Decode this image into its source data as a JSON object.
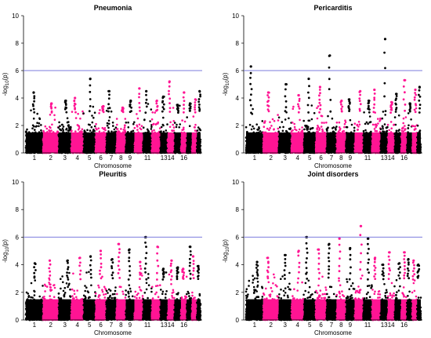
{
  "chart_data": [
    {
      "type": "scatter",
      "title": "Pneumonia",
      "xlabel": "Chromosome",
      "ylabel": "-log10(p)",
      "ylim": [
        0,
        10
      ],
      "yticks": [
        0,
        2,
        4,
        6,
        8,
        10
      ],
      "threshold": 6,
      "chromosomes": [
        "1",
        "2",
        "3",
        "4",
        "5",
        "6",
        "7",
        "8",
        "9",
        "10",
        "11",
        "12",
        "13",
        "14",
        "15",
        "16",
        "17",
        "18",
        "19"
      ],
      "xtick_labels": [
        "1",
        "2",
        "3",
        "4",
        "5",
        "6",
        "7",
        "8",
        "9",
        "11",
        "13",
        "14",
        "16"
      ],
      "series_colors": [
        "#000000",
        "#ff1493"
      ],
      "peaks": [
        4.4,
        3.6,
        3.8,
        4.0,
        5.4,
        3.4,
        4.5,
        3.3,
        3.8,
        4.7,
        4.5,
        3.8,
        4.1,
        5.2,
        3.5,
        4.4,
        3.6,
        3.9,
        4.5
      ]
    },
    {
      "type": "scatter",
      "title": "Pericarditis",
      "xlabel": "Chromosome",
      "ylabel": "-log10(p)",
      "ylim": [
        0,
        10
      ],
      "yticks": [
        0,
        2,
        4,
        6,
        8,
        10
      ],
      "threshold": 6,
      "chromosomes": [
        "1",
        "2",
        "3",
        "4",
        "5",
        "6",
        "7",
        "8",
        "9",
        "10",
        "11",
        "12",
        "13",
        "14",
        "15",
        "16",
        "17",
        "18",
        "19"
      ],
      "xtick_labels": [
        "1",
        "2",
        "3",
        "4",
        "5",
        "6",
        "7",
        "8",
        "9",
        "11",
        "13",
        "14",
        "16"
      ],
      "series_colors": [
        "#000000",
        "#ff1493"
      ],
      "peaks": [
        6.3,
        4.4,
        5.0,
        4.2,
        5.4,
        4.8,
        7.1,
        3.8,
        3.9,
        4.5,
        3.8,
        4.6,
        8.3,
        3.7,
        4.3,
        5.3,
        3.6,
        4.6,
        4.8
      ]
    },
    {
      "type": "scatter",
      "title": "Pleuritis",
      "xlabel": "Chromosome",
      "ylabel": "-log10(p)",
      "ylim": [
        0,
        10
      ],
      "yticks": [
        0,
        2,
        4,
        6,
        8,
        10
      ],
      "threshold": 6,
      "chromosomes": [
        "1",
        "2",
        "3",
        "4",
        "5",
        "6",
        "7",
        "8",
        "9",
        "10",
        "11",
        "12",
        "13",
        "14",
        "15",
        "16",
        "17",
        "18",
        "19"
      ],
      "xtick_labels": [
        "1",
        "2",
        "3",
        "4",
        "5",
        "6",
        "7",
        "8",
        "9",
        "11",
        "13",
        "14",
        "16"
      ],
      "series_colors": [
        "#000000",
        "#ff1493"
      ],
      "peaks": [
        4.1,
        4.3,
        4.3,
        4.5,
        4.6,
        5.0,
        4.4,
        5.5,
        5.1,
        4.2,
        6.0,
        5.3,
        3.7,
        4.3,
        3.8,
        3.7,
        5.3,
        4.6,
        3.9
      ]
    },
    {
      "type": "scatter",
      "title": "Joint disorders",
      "xlabel": "Chromosome",
      "ylabel": "-log10(p)",
      "ylim": [
        0,
        10
      ],
      "yticks": [
        0,
        2,
        4,
        6,
        8,
        10
      ],
      "threshold": 6,
      "chromosomes": [
        "1",
        "2",
        "3",
        "4",
        "5",
        "6",
        "7",
        "8",
        "9",
        "10",
        "11",
        "12",
        "13",
        "14",
        "15",
        "16",
        "17",
        "18",
        "19"
      ],
      "xtick_labels": [
        "1",
        "2",
        "3",
        "4",
        "5",
        "6",
        "7",
        "8",
        "9",
        "11",
        "13",
        "14",
        "16"
      ],
      "series_colors": [
        "#000000",
        "#ff1493"
      ],
      "peaks": [
        4.2,
        4.5,
        4.7,
        5.0,
        6.0,
        5.1,
        5.5,
        5.9,
        5.2,
        6.8,
        5.9,
        4.5,
        4.0,
        4.9,
        4.1,
        4.9,
        4.4,
        4.3,
        4.0
      ]
    }
  ]
}
